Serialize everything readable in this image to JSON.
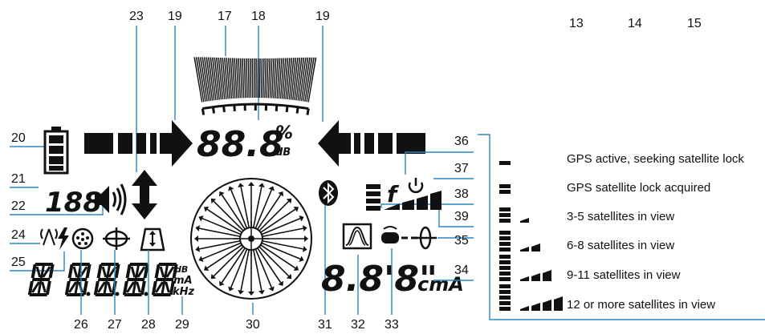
{
  "callouts": {
    "top": [
      "13",
      "14",
      "15",
      "23",
      "19",
      "17",
      "18",
      "19"
    ],
    "left": [
      "20",
      "21",
      "22",
      "24",
      "25"
    ],
    "right": [
      "36",
      "37",
      "38",
      "39",
      "35",
      "34"
    ],
    "bottom": [
      "26",
      "27",
      "28",
      "29",
      "30",
      "31",
      "32",
      "33"
    ]
  },
  "lcd": {
    "center_value": "88.8",
    "percent": "%",
    "db_unit": "dB",
    "left_counter": "188",
    "depth_value": "8.8'8\"",
    "depth_unit": "cmA",
    "units_db": "dB",
    "units_ma": "mA",
    "units_khz": "kHz",
    "freq_symbol": "f"
  },
  "legend": {
    "items": [
      {
        "text": "GPS active, seeking satellite lock",
        "bars": 0
      },
      {
        "text": "GPS satellite lock acquired",
        "bars": 0
      },
      {
        "text": "3-5 satellites in view",
        "bars": 1
      },
      {
        "text": "6-8 satellites in view",
        "bars": 2
      },
      {
        "text": "9-11 satellites in view",
        "bars": 3
      },
      {
        "text": "12 or more satellites in view",
        "bars": 4
      }
    ]
  },
  "colors": {
    "ink": "#111111",
    "leader": "#2e86c1",
    "frame": "#2e86c1"
  },
  "icons": [
    "battery-icon",
    "speaker-icon",
    "antenna-icon",
    "lightning-icon",
    "connector-icon",
    "compass-icon",
    "bluetooth-icon",
    "peak-filter-icon",
    "clamp-icon",
    "sonde-icon",
    "power-icon",
    "satellite-bars-icon",
    "depth-arrow-icon",
    "direction-arrow-icon"
  ]
}
